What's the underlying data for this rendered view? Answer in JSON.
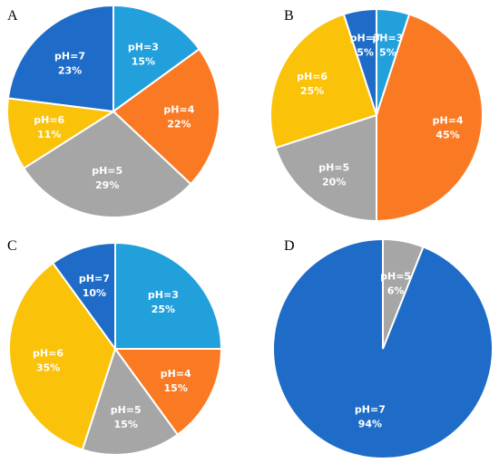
{
  "colors": {
    "pH=3": "#22a0dc",
    "pH=4": "#fa7a24",
    "pH=5": "#a6a6a6",
    "pH=6": "#fbc20a",
    "pH=7": "#1e6cc8"
  },
  "label_colors": {
    "pH=3": "#ffffff",
    "pH=4": "#ffffff",
    "pH=5": "#ffffff",
    "pH=6": "#ffffff",
    "pH=7": "#ffffff"
  },
  "chart_data": [
    {
      "type": "pie",
      "panel": "A",
      "slices": [
        {
          "label": "pH=3",
          "value": 15,
          "text": "15%"
        },
        {
          "label": "pH=4",
          "value": 22,
          "text": "22%"
        },
        {
          "label": "pH=5",
          "value": 29,
          "text": "29%"
        },
        {
          "label": "pH=6",
          "value": 11,
          "text": "11%"
        },
        {
          "label": "pH=7",
          "value": 23,
          "text": "23%"
        }
      ]
    },
    {
      "type": "pie",
      "panel": "B",
      "slices": [
        {
          "label": "pH=3",
          "value": 5,
          "text": "5%"
        },
        {
          "label": "pH=4",
          "value": 45,
          "text": "45%"
        },
        {
          "label": "pH=5",
          "value": 20,
          "text": "20%"
        },
        {
          "label": "pH=6",
          "value": 25,
          "text": "25%"
        },
        {
          "label": "pH=7",
          "value": 5,
          "text": "5%"
        }
      ]
    },
    {
      "type": "pie",
      "panel": "C",
      "slices": [
        {
          "label": "pH=3",
          "value": 25,
          "text": "25%"
        },
        {
          "label": "pH=4",
          "value": 15,
          "text": "15%"
        },
        {
          "label": "pH=5",
          "value": 15,
          "text": "15%"
        },
        {
          "label": "pH=6",
          "value": 35,
          "text": "35%"
        },
        {
          "label": "pH=7",
          "value": 10,
          "text": "10%"
        }
      ]
    },
    {
      "type": "pie",
      "panel": "D",
      "slices": [
        {
          "label": "pH=5",
          "value": 6,
          "text": "6%"
        },
        {
          "label": "pH=7",
          "value": 94,
          "text": "94%"
        }
      ]
    }
  ]
}
